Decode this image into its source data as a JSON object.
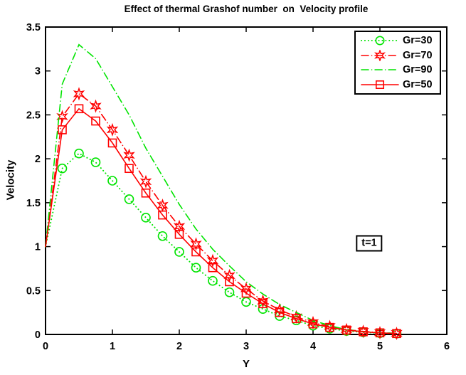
{
  "figure": {
    "background": "#FFFFFF"
  },
  "chart_data": {
    "type": "line",
    "title": "Effect of thermal Grashof number  on  Velocity profile",
    "xlabel": "Y",
    "ylabel": "Velocity",
    "xlim": [
      0,
      6
    ],
    "ylim": [
      0,
      3.5
    ],
    "xticks": [
      0,
      1,
      2,
      3,
      4,
      5,
      6
    ],
    "yticks": [
      0,
      0.5,
      1,
      1.5,
      2,
      2.5,
      3,
      3.5
    ],
    "grid": false,
    "x": [
      0,
      0.25,
      0.5,
      0.75,
      1,
      1.25,
      1.5,
      1.75,
      2,
      2.25,
      2.5,
      2.75,
      3,
      3.25,
      3.5,
      3.75,
      4,
      4.25,
      4.5,
      4.75,
      5,
      5.25
    ],
    "series": [
      {
        "name": "Gr=30",
        "color": "#00E400",
        "line": "dotted",
        "marker": "circle",
        "values": [
          1.0,
          1.89,
          2.06,
          1.96,
          1.75,
          1.54,
          1.33,
          1.12,
          0.94,
          0.76,
          0.61,
          0.48,
          0.37,
          0.29,
          0.21,
          0.16,
          0.1,
          0.065,
          0.04,
          0.025,
          0.015,
          0.01
        ]
      },
      {
        "name": "Gr=70",
        "color": "#FF0000",
        "line": "dashdot",
        "marker": "hexagram",
        "values": [
          1.0,
          2.48,
          2.74,
          2.6,
          2.33,
          2.04,
          1.74,
          1.47,
          1.23,
          1.03,
          0.84,
          0.67,
          0.52,
          0.38,
          0.28,
          0.2,
          0.135,
          0.09,
          0.055,
          0.035,
          0.02,
          0.012
        ]
      },
      {
        "name": "Gr=90",
        "color": "#00E400",
        "line": "dashdot",
        "marker": "none",
        "values": [
          1.0,
          2.85,
          3.3,
          3.14,
          2.82,
          2.5,
          2.12,
          1.8,
          1.48,
          1.2,
          0.97,
          0.78,
          0.6,
          0.46,
          0.34,
          0.25,
          0.16,
          0.1,
          0.055,
          0.03,
          0.02,
          0.012
        ]
      },
      {
        "name": "Gr=50",
        "color": "#FF0000",
        "line": "solid",
        "marker": "square",
        "values": [
          1.0,
          2.33,
          2.57,
          2.43,
          2.18,
          1.89,
          1.61,
          1.36,
          1.14,
          0.94,
          0.76,
          0.6,
          0.47,
          0.35,
          0.25,
          0.18,
          0.12,
          0.08,
          0.05,
          0.03,
          0.018,
          0.01
        ]
      }
    ],
    "legend": {
      "position": "top-right"
    },
    "annotation": {
      "text": "t=1",
      "x": 4.84,
      "y": 1.04
    },
    "colors": {
      "axis": "#000000",
      "background": "#FFFFFF"
    }
  }
}
